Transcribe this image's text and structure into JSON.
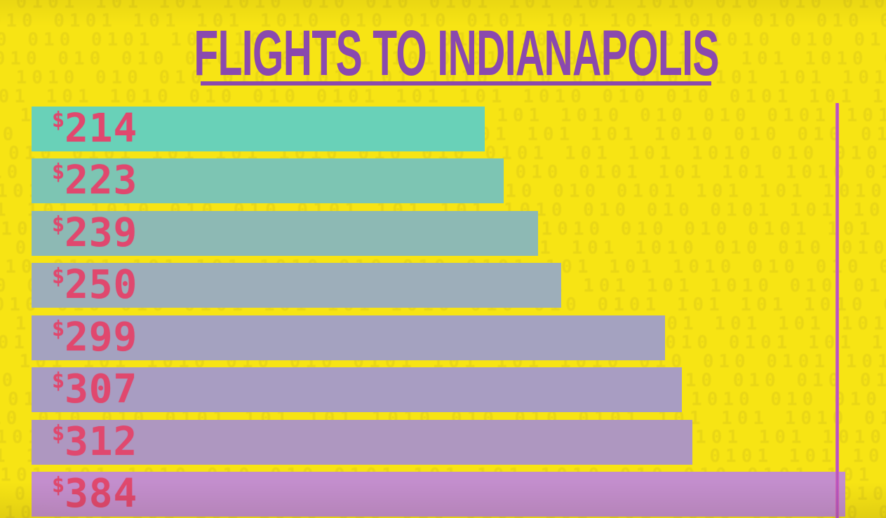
{
  "header": {
    "title": "FLIGHTS TO INDIANAPOLIS"
  },
  "chart_data": {
    "type": "bar",
    "orientation": "horizontal",
    "title": "FLIGHTS TO INDIANAPOLIS",
    "currency_symbol": "$",
    "values": [
      214,
      223,
      239,
      250,
      299,
      307,
      312,
      384
    ],
    "labels": [
      "$214",
      "$223",
      "$239",
      "$250",
      "$299",
      "$307",
      "$312",
      "$384"
    ],
    "xlabel": "",
    "ylabel": "",
    "value_axis_range": [
      0,
      403
    ],
    "grid": false,
    "legend": "none",
    "reference_line_value": 380,
    "bar_colors": [
      "#69d1b8",
      "#7dc5b3",
      "#8db9b4",
      "#9daeba",
      "#a4a2c0",
      "#a89dc2",
      "#ae97c0",
      "#c38ecd"
    ],
    "label_color": "#e0486e"
  },
  "style": {
    "background_color": "#f7e414",
    "pattern_digit_color": "#e0cd18",
    "title_color": "#8a49ae",
    "underline_color": "#8a49ae",
    "reference_line_color": "#b052c0"
  },
  "background": {
    "pattern_text": "10"
  }
}
